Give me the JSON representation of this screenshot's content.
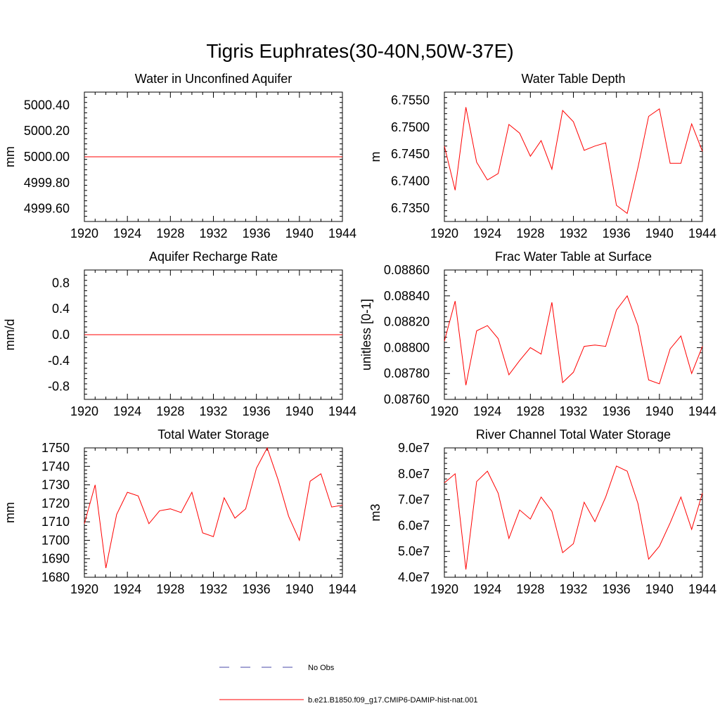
{
  "figure": {
    "title": "Tigris Euphrates(30-40N,50W-37E)"
  },
  "legend": {
    "entries": [
      {
        "label": "No Obs",
        "style": "dashed",
        "color": "#4a4aa8"
      },
      {
        "label": "b.e21.B1850.f09_g17.CMIP6-DAMIP-hist-nat.001",
        "style": "solid",
        "color": "#ff0000"
      }
    ]
  },
  "line_color": "#ff0000",
  "chart_data": [
    {
      "type": "line",
      "title": "Water in Unconfined Aquifer",
      "ylabel": "mm",
      "xlim": [
        1920,
        1944
      ],
      "ylim": [
        4999.5,
        5000.5
      ],
      "xticks": [
        "1920",
        "1924",
        "1928",
        "1932",
        "1936",
        "1940",
        "1944"
      ],
      "yticks": [
        4999.6,
        4999.8,
        5000.0,
        5000.2,
        5000.4
      ],
      "ytick_labels": [
        "4999.60",
        "4999.80",
        "5000.00",
        "5000.20",
        "5000.40"
      ],
      "x": [
        1920,
        1944
      ],
      "series": [
        {
          "values": [
            5000.0,
            5000.0
          ]
        }
      ]
    },
    {
      "type": "line",
      "title": "Water Table Depth",
      "ylabel": "m",
      "xlim": [
        1920,
        1944
      ],
      "ylim": [
        6.7325,
        6.7565
      ],
      "xticks": [
        "1920",
        "1924",
        "1928",
        "1932",
        "1936",
        "1940",
        "1944"
      ],
      "yticks": [
        6.735,
        6.74,
        6.745,
        6.75,
        6.755
      ],
      "ytick_labels": [
        "6.7350",
        "6.7400",
        "6.7450",
        "6.7500",
        "6.7550"
      ],
      "x": [
        1920,
        1921,
        1922,
        1923,
        1924,
        1925,
        1926,
        1927,
        1928,
        1929,
        1930,
        1931,
        1932,
        1933,
        1934,
        1935,
        1936,
        1937,
        1938,
        1939,
        1940,
        1941,
        1942,
        1943,
        1944
      ],
      "series": [
        {
          "values": [
            6.7465,
            6.7383,
            6.7537,
            6.7435,
            6.7402,
            6.7414,
            6.7505,
            6.7489,
            6.7446,
            6.7475,
            6.7422,
            6.7531,
            6.751,
            6.7457,
            6.7465,
            6.7471,
            6.7355,
            6.734,
            6.7425,
            6.752,
            6.7534,
            6.7433,
            6.7433,
            6.7506,
            6.7455
          ]
        }
      ]
    },
    {
      "type": "line",
      "title": "Aquifer Recharge Rate",
      "ylabel": "mm/d",
      "xlim": [
        1920,
        1944
      ],
      "ylim": [
        -1.0,
        1.0
      ],
      "xticks": [
        "1920",
        "1924",
        "1928",
        "1932",
        "1936",
        "1940",
        "1944"
      ],
      "yticks": [
        -0.8,
        -0.4,
        0.0,
        0.4,
        0.8
      ],
      "ytick_labels": [
        "-0.8",
        "-0.4",
        "0.0",
        "0.4",
        "0.8"
      ],
      "x": [
        1920,
        1944
      ],
      "series": [
        {
          "values": [
            0.0,
            0.0
          ]
        }
      ]
    },
    {
      "type": "line",
      "title": "Frac Water Table at Surface",
      "ylabel": "unitless [0-1]",
      "xlim": [
        1920,
        1944
      ],
      "ylim": [
        0.0876,
        0.0886
      ],
      "xticks": [
        "1920",
        "1924",
        "1928",
        "1932",
        "1936",
        "1940",
        "1944"
      ],
      "yticks": [
        0.0876,
        0.0878,
        0.088,
        0.0882,
        0.0884,
        0.0886
      ],
      "ytick_labels": [
        "0.08760",
        "0.08780",
        "0.08800",
        "0.08820",
        "0.08840",
        "0.08860"
      ],
      "x": [
        1920,
        1921,
        1922,
        1923,
        1924,
        1925,
        1926,
        1927,
        1928,
        1929,
        1930,
        1931,
        1932,
        1933,
        1934,
        1935,
        1936,
        1937,
        1938,
        1939,
        1940,
        1941,
        1942,
        1943,
        1944
      ],
      "series": [
        {
          "values": [
            0.08805,
            0.08836,
            0.08771,
            0.08813,
            0.08817,
            0.08807,
            0.08779,
            0.0879,
            0.088,
            0.08795,
            0.08835,
            0.08773,
            0.08781,
            0.08801,
            0.08802,
            0.08801,
            0.08829,
            0.0884,
            0.08817,
            0.08775,
            0.08772,
            0.08799,
            0.08809,
            0.0878,
            0.08801
          ]
        }
      ]
    },
    {
      "type": "line",
      "title": "Total Water Storage",
      "ylabel": "mm",
      "xlim": [
        1920,
        1944
      ],
      "ylim": [
        1680,
        1750
      ],
      "xticks": [
        "1920",
        "1924",
        "1928",
        "1932",
        "1936",
        "1940",
        "1944"
      ],
      "yticks": [
        1680,
        1690,
        1700,
        1710,
        1720,
        1730,
        1740,
        1750
      ],
      "ytick_labels": [
        "1680",
        "1690",
        "1700",
        "1710",
        "1720",
        "1730",
        "1740",
        "1750"
      ],
      "x": [
        1920,
        1921,
        1922,
        1923,
        1924,
        1925,
        1926,
        1927,
        1928,
        1929,
        1930,
        1931,
        1932,
        1933,
        1934,
        1935,
        1936,
        1937,
        1938,
        1939,
        1940,
        1941,
        1942,
        1943,
        1944
      ],
      "series": [
        {
          "values": [
            1709,
            1730,
            1685,
            1714,
            1726,
            1724,
            1709,
            1716,
            1717,
            1715,
            1726,
            1704,
            1702,
            1723,
            1712,
            1717,
            1739,
            1750,
            1733,
            1713,
            1700,
            1732,
            1736,
            1718,
            1719
          ]
        }
      ]
    },
    {
      "type": "line",
      "title": "River Channel Total Water Storage",
      "ylabel": "m3",
      "xlim": [
        1920,
        1944
      ],
      "ylim": [
        40000000,
        90000000
      ],
      "xticks": [
        "1920",
        "1924",
        "1928",
        "1932",
        "1936",
        "1940",
        "1944"
      ],
      "yticks": [
        40000000,
        50000000,
        60000000,
        70000000,
        80000000,
        90000000
      ],
      "ytick_labels": [
        "4.0e7",
        "5.0e7",
        "6.0e7",
        "7.0e7",
        "8.0e7",
        "9.0e7"
      ],
      "x": [
        1920,
        1921,
        1922,
        1923,
        1924,
        1925,
        1926,
        1927,
        1928,
        1929,
        1930,
        1931,
        1932,
        1933,
        1934,
        1935,
        1936,
        1937,
        1938,
        1939,
        1940,
        1941,
        1942,
        1943,
        1944
      ],
      "series": [
        {
          "values": [
            76500000,
            80000000,
            43000000,
            77000000,
            81000000,
            72500000,
            55000000,
            66000000,
            62500000,
            71000000,
            65500000,
            49500000,
            53000000,
            69000000,
            61500000,
            71000000,
            83000000,
            81000000,
            68500000,
            47000000,
            52000000,
            61000000,
            71000000,
            58500000,
            72500000
          ]
        }
      ]
    }
  ]
}
